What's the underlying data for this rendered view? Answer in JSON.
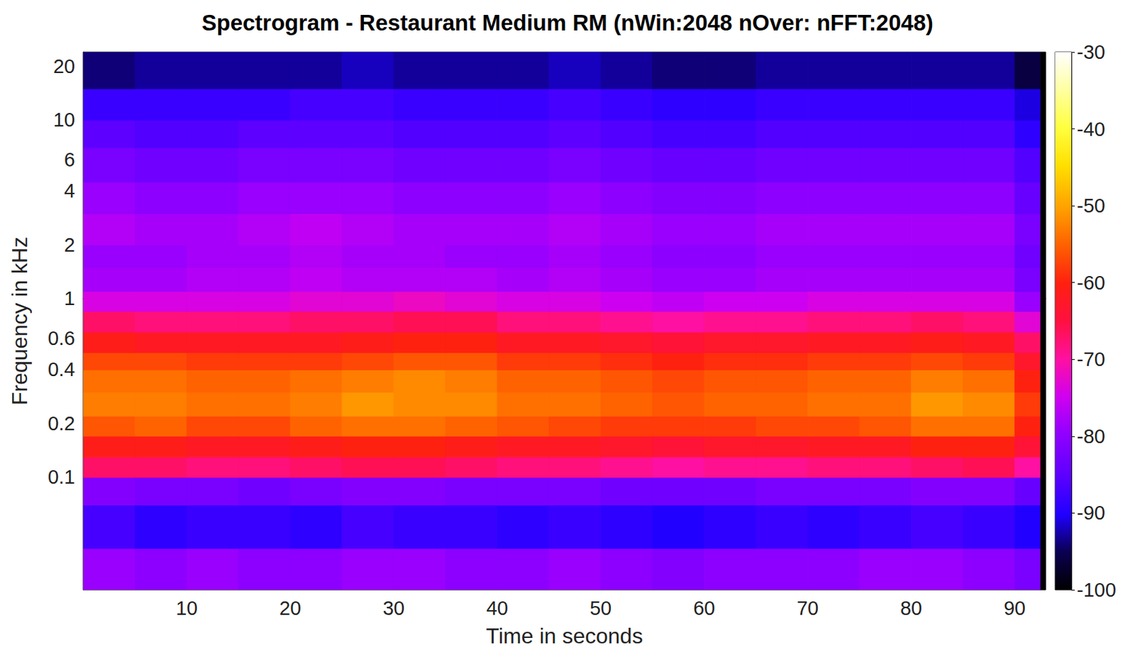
{
  "chart_data": {
    "type": "heatmap",
    "title": "Spectrogram - Restaurant Medium RM (nWin:2048 nOver: nFFT:2048)",
    "x_label": "Time in seconds",
    "y_label": "Frequency in kHz",
    "log": "y",
    "xlim": [
      0,
      93
    ],
    "xticks": [
      10,
      20,
      30,
      40,
      50,
      60,
      70,
      80,
      90
    ],
    "ylim": [
      0.0234,
      24
    ],
    "yticks": [
      0.1,
      0.2,
      0.4,
      0.6,
      1,
      2,
      4,
      6,
      10,
      20
    ],
    "time_edges": [
      0,
      5,
      10,
      15,
      20,
      25,
      30,
      35,
      40,
      45,
      50,
      55,
      60,
      65,
      70,
      75,
      80,
      85,
      90,
      92.5,
      93
    ],
    "freq_edges": [
      0.0234,
      0.04,
      0.07,
      0.1,
      0.13,
      0.17,
      0.22,
      0.3,
      0.4,
      0.5,
      0.65,
      0.85,
      1.1,
      1.5,
      2,
      3,
      4.5,
      7,
      10,
      15,
      24
    ],
    "cells": [
      [
        -79,
        -80,
        -79,
        -80,
        -80,
        -79,
        -79,
        -80,
        -80,
        -79,
        -80,
        -81,
        -80,
        -80,
        -80,
        -79,
        -79,
        -80,
        -82,
        -100
      ],
      [
        -87,
        -89,
        -88,
        -88,
        -89,
        -87,
        -88,
        -88,
        -89,
        -88,
        -89,
        -90,
        -89,
        -88,
        -89,
        -88,
        -87,
        -88,
        -90,
        -100
      ],
      [
        -81,
        -82,
        -82,
        -83,
        -82,
        -81,
        -81,
        -82,
        -82,
        -82,
        -83,
        -83,
        -83,
        -82,
        -82,
        -82,
        -81,
        -81,
        -84,
        -100
      ],
      [
        -67,
        -67,
        -68,
        -68,
        -67,
        -66,
        -66,
        -67,
        -68,
        -68,
        -69,
        -70,
        -69,
        -69,
        -68,
        -68,
        -67,
        -66,
        -70,
        -100
      ],
      [
        -61,
        -61,
        -62,
        -62,
        -61,
        -60,
        -60,
        -61,
        -62,
        -62,
        -63,
        -64,
        -63,
        -63,
        -62,
        -62,
        -60,
        -60,
        -64,
        -100
      ],
      [
        -56,
        -55,
        -57,
        -57,
        -55,
        -54,
        -54,
        -55,
        -56,
        -57,
        -58,
        -58,
        -58,
        -57,
        -57,
        -56,
        -54,
        -54,
        -60,
        -100
      ],
      [
        -53,
        -53,
        -54,
        -54,
        -53,
        -51,
        -52,
        -52,
        -54,
        -54,
        -55,
        -56,
        -55,
        -55,
        -54,
        -54,
        -51,
        -52,
        -58,
        -100
      ],
      [
        -54,
        -54,
        -55,
        -55,
        -54,
        -53,
        -52,
        -53,
        -55,
        -55,
        -56,
        -57,
        -56,
        -56,
        -55,
        -55,
        -53,
        -54,
        -60,
        -100
      ],
      [
        -57,
        -57,
        -58,
        -58,
        -58,
        -57,
        -56,
        -56,
        -58,
        -58,
        -59,
        -60,
        -59,
        -59,
        -58,
        -58,
        -57,
        -58,
        -63,
        -100
      ],
      [
        -61,
        -62,
        -62,
        -62,
        -62,
        -61,
        -60,
        -60,
        -62,
        -62,
        -63,
        -64,
        -63,
        -63,
        -62,
        -62,
        -61,
        -62,
        -67,
        -100
      ],
      [
        -67,
        -68,
        -68,
        -68,
        -67,
        -67,
        -66,
        -66,
        -68,
        -68,
        -69,
        -70,
        -69,
        -69,
        -68,
        -68,
        -67,
        -68,
        -73,
        -100
      ],
      [
        -74,
        -74,
        -74,
        -74,
        -73,
        -73,
        -72,
        -73,
        -74,
        -74,
        -75,
        -76,
        -75,
        -75,
        -74,
        -74,
        -74,
        -74,
        -79,
        -100
      ],
      [
        -78,
        -78,
        -77,
        -77,
        -76,
        -77,
        -77,
        -77,
        -78,
        -77,
        -78,
        -79,
        -79,
        -78,
        -78,
        -78,
        -78,
        -78,
        -82,
        -100
      ],
      [
        -79,
        -79,
        -78,
        -78,
        -77,
        -78,
        -78,
        -79,
        -79,
        -78,
        -79,
        -80,
        -80,
        -79,
        -79,
        -79,
        -79,
        -79,
        -83,
        -100
      ],
      [
        -77,
        -78,
        -78,
        -77,
        -76,
        -77,
        -78,
        -78,
        -78,
        -77,
        -78,
        -79,
        -79,
        -78,
        -78,
        -78,
        -78,
        -78,
        -82,
        -100
      ],
      [
        -79,
        -80,
        -80,
        -79,
        -79,
        -79,
        -80,
        -80,
        -80,
        -79,
        -80,
        -81,
        -81,
        -80,
        -80,
        -80,
        -80,
        -80,
        -84,
        -100
      ],
      [
        -82,
        -83,
        -83,
        -82,
        -82,
        -82,
        -83,
        -83,
        -83,
        -82,
        -83,
        -84,
        -84,
        -83,
        -83,
        -83,
        -83,
        -83,
        -86,
        -100
      ],
      [
        -85,
        -86,
        -86,
        -85,
        -85,
        -85,
        -86,
        -86,
        -86,
        -85,
        -86,
        -87,
        -87,
        -86,
        -86,
        -86,
        -86,
        -86,
        -89,
        -100
      ],
      [
        -88,
        -88,
        -88,
        -88,
        -87,
        -87,
        -88,
        -88,
        -88,
        -87,
        -88,
        -89,
        -89,
        -88,
        -88,
        -88,
        -88,
        -88,
        -91,
        -100
      ],
      [
        -94,
        -93,
        -93,
        -93,
        -93,
        -92,
        -93,
        -93,
        -93,
        -92,
        -93,
        -94,
        -94,
        -93,
        -93,
        -93,
        -93,
        -93,
        -96,
        -100
      ]
    ],
    "colorbar_range": [
      -100,
      -30
    ],
    "colorbar_ticks": [
      -100,
      -90,
      -80,
      -70,
      -60,
      -50,
      -40,
      -30
    ]
  }
}
